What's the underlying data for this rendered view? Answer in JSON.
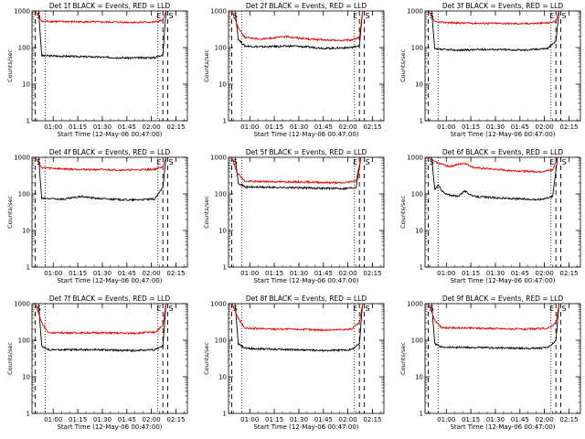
{
  "figure": {
    "ylabel": "Counts/sec",
    "xlabel": "Start Time (12-May-06 00:47:00)",
    "y_ticks": [
      "1",
      "10",
      "100",
      "1000"
    ],
    "x_ticks": [
      "01:00",
      "01:15",
      "01:30",
      "01:45",
      "02:00",
      "02:15"
    ],
    "colors": {
      "events": "#000000",
      "lld": "#ee0000"
    }
  },
  "chart_data": [
    {
      "type": "line",
      "title": "Det 1f BLACK = Events, RED = LLD",
      "xlabel": "Start Time (12-May-06 00:47:00)",
      "ylabel": "Counts/sec",
      "x_range_minutes_after_0047": [
        0,
        95
      ],
      "ylim": [
        1,
        1000
      ],
      "yscale": "log",
      "x_ticks": [
        "01:00",
        "01:15",
        "01:30",
        "01:45",
        "02:00",
        "02:15"
      ],
      "markers": [
        "S",
        "E",
        "S"
      ],
      "series": [
        {
          "name": "Events",
          "color": "#000000",
          "values": [
            [
              4,
              1000
            ],
            [
              6,
              60
            ],
            [
              20,
              58
            ],
            [
              40,
              55
            ],
            [
              60,
              52
            ],
            [
              75,
              53
            ],
            [
              80,
              65
            ],
            [
              82,
              1000
            ]
          ]
        },
        {
          "name": "LLD",
          "color": "#ee0000",
          "values": [
            [
              2,
              1000
            ],
            [
              6,
              520
            ],
            [
              20,
              510
            ],
            [
              40,
              500
            ],
            [
              60,
              490
            ],
            [
              75,
              495
            ],
            [
              80,
              560
            ],
            [
              82,
              1000
            ]
          ]
        }
      ]
    },
    {
      "type": "line",
      "title": "Det 2f BLACK = Events, RED = LLD",
      "xlabel": "Start Time (12-May-06 00:47:00)",
      "ylabel": "Counts/sec",
      "x_range_minutes_after_0047": [
        0,
        95
      ],
      "ylim": [
        1,
        1000
      ],
      "yscale": "log",
      "x_ticks": [
        "01:00",
        "01:15",
        "01:30",
        "01:45",
        "02:00",
        "02:15"
      ],
      "markers": [
        "S",
        "E",
        "S"
      ],
      "series": [
        {
          "name": "Events",
          "color": "#000000",
          "values": [
            [
              4,
              1000
            ],
            [
              6,
              170
            ],
            [
              10,
              110
            ],
            [
              20,
              105
            ],
            [
              40,
              110
            ],
            [
              60,
              95
            ],
            [
              75,
              100
            ],
            [
              80,
              115
            ],
            [
              82,
              1000
            ]
          ]
        },
        {
          "name": "LLD",
          "color": "#ee0000",
          "values": [
            [
              2,
              1000
            ],
            [
              6,
              350
            ],
            [
              10,
              190
            ],
            [
              20,
              170
            ],
            [
              35,
              200
            ],
            [
              50,
              170
            ],
            [
              65,
              155
            ],
            [
              75,
              160
            ],
            [
              80,
              190
            ],
            [
              82,
              1000
            ]
          ]
        }
      ]
    },
    {
      "type": "line",
      "title": "Det 3f BLACK = Events, RED = LLD",
      "xlabel": "Start Time (12-May-06 00:47:00)",
      "ylabel": "Counts/sec",
      "x_range_minutes_after_0047": [
        0,
        95
      ],
      "ylim": [
        1,
        1000
      ],
      "yscale": "log",
      "x_ticks": [
        "01:00",
        "01:15",
        "01:30",
        "01:45",
        "02:00",
        "02:15"
      ],
      "markers": [
        "S",
        "E",
        "S"
      ],
      "series": [
        {
          "name": "Events",
          "color": "#000000",
          "values": [
            [
              4,
              1000
            ],
            [
              6,
              90
            ],
            [
              20,
              85
            ],
            [
              40,
              90
            ],
            [
              60,
              85
            ],
            [
              75,
              95
            ],
            [
              80,
              150
            ],
            [
              82,
              1000
            ]
          ]
        },
        {
          "name": "LLD",
          "color": "#ee0000",
          "values": [
            [
              2,
              1000
            ],
            [
              6,
              500
            ],
            [
              20,
              470
            ],
            [
              40,
              460
            ],
            [
              60,
              450
            ],
            [
              75,
              470
            ],
            [
              80,
              520
            ],
            [
              82,
              1000
            ]
          ]
        }
      ]
    },
    {
      "type": "line",
      "title": "Det 4f BLACK = Events, RED = LLD",
      "xlabel": "Start Time (12-May-06 00:47:00)",
      "ylabel": "Counts/sec",
      "x_range_minutes_after_0047": [
        0,
        95
      ],
      "ylim": [
        1,
        1000
      ],
      "yscale": "log",
      "x_ticks": [
        "01:00",
        "01:15",
        "01:30",
        "01:45",
        "02:00",
        "02:15"
      ],
      "markers": [
        "S",
        "E",
        "S"
      ],
      "series": [
        {
          "name": "Events",
          "color": "#000000",
          "values": [
            [
              4,
              1000
            ],
            [
              6,
              75
            ],
            [
              20,
              72
            ],
            [
              30,
              85
            ],
            [
              40,
              75
            ],
            [
              60,
              68
            ],
            [
              75,
              72
            ],
            [
              80,
              150
            ],
            [
              82,
              1000
            ]
          ]
        },
        {
          "name": "LLD",
          "color": "#ee0000",
          "values": [
            [
              2,
              1000
            ],
            [
              6,
              520
            ],
            [
              20,
              480
            ],
            [
              40,
              460
            ],
            [
              60,
              450
            ],
            [
              75,
              470
            ],
            [
              80,
              560
            ],
            [
              82,
              1000
            ]
          ]
        }
      ]
    },
    {
      "type": "line",
      "title": "Det 5f BLACK = Events, RED = LLD",
      "xlabel": "Start Time (12-May-06 00:47:00)",
      "ylabel": "Counts/sec",
      "x_range_minutes_after_0047": [
        0,
        95
      ],
      "ylim": [
        1,
        1000
      ],
      "yscale": "log",
      "x_ticks": [
        "01:00",
        "01:15",
        "01:30",
        "01:45",
        "02:00",
        "02:15"
      ],
      "markers": [
        "S",
        "E",
        "S"
      ],
      "series": [
        {
          "name": "Events",
          "color": "#000000",
          "values": [
            [
              4,
              1000
            ],
            [
              6,
              200
            ],
            [
              10,
              155
            ],
            [
              30,
              150
            ],
            [
              50,
              145
            ],
            [
              70,
              140
            ],
            [
              78,
              150
            ],
            [
              81,
              1000
            ]
          ]
        },
        {
          "name": "LLD",
          "color": "#ee0000",
          "values": [
            [
              2,
              1000
            ],
            [
              5,
              400
            ],
            [
              10,
              220
            ],
            [
              30,
              215
            ],
            [
              50,
              210
            ],
            [
              70,
              200
            ],
            [
              78,
              230
            ],
            [
              81,
              1000
            ]
          ]
        }
      ]
    },
    {
      "type": "line",
      "title": "Det 6f BLACK = Events, RED = LLD",
      "xlabel": "Start Time (12-May-06 00:47:00)",
      "ylabel": "Counts/sec",
      "x_range_minutes_after_0047": [
        0,
        95
      ],
      "ylim": [
        1,
        1000
      ],
      "yscale": "log",
      "x_ticks": [
        "01:00",
        "01:15",
        "01:30",
        "01:45",
        "02:00",
        "02:15"
      ],
      "markers": [
        "S",
        "E",
        "S"
      ],
      "series": [
        {
          "name": "Events",
          "color": "#000000",
          "values": [
            [
              4,
              1000
            ],
            [
              6,
              130
            ],
            [
              8,
              170
            ],
            [
              12,
              100
            ],
            [
              20,
              85
            ],
            [
              24,
              120
            ],
            [
              30,
              85
            ],
            [
              50,
              75
            ],
            [
              70,
              70
            ],
            [
              78,
              85
            ],
            [
              81,
              1000
            ]
          ]
        },
        {
          "name": "LLD",
          "color": "#ee0000",
          "values": [
            [
              2,
              1000
            ],
            [
              5,
              800
            ],
            [
              8,
              700
            ],
            [
              15,
              560
            ],
            [
              24,
              700
            ],
            [
              30,
              520
            ],
            [
              50,
              440
            ],
            [
              70,
              400
            ],
            [
              78,
              450
            ],
            [
              81,
              1000
            ]
          ]
        }
      ]
    },
    {
      "type": "line",
      "title": "Det 7f BLACK = Events, RED = LLD",
      "xlabel": "Start Time (12-May-06 00:47:00)",
      "ylabel": "Counts/sec",
      "x_range_minutes_after_0047": [
        0,
        95
      ],
      "ylim": [
        1,
        1000
      ],
      "yscale": "log",
      "x_ticks": [
        "01:00",
        "01:15",
        "01:30",
        "01:45",
        "02:00",
        "02:15"
      ],
      "markers": [
        "S",
        "E",
        "S"
      ],
      "series": [
        {
          "name": "Events",
          "color": "#000000",
          "values": [
            [
              4,
              1000
            ],
            [
              6,
              70
            ],
            [
              10,
              55
            ],
            [
              40,
              55
            ],
            [
              60,
              52
            ],
            [
              75,
              55
            ],
            [
              80,
              70
            ],
            [
              82,
              1000
            ]
          ]
        },
        {
          "name": "LLD",
          "color": "#ee0000",
          "values": [
            [
              2,
              1000
            ],
            [
              6,
              300
            ],
            [
              10,
              160
            ],
            [
              40,
              160
            ],
            [
              60,
              155
            ],
            [
              75,
              165
            ],
            [
              80,
              250
            ],
            [
              82,
              1000
            ]
          ]
        }
      ]
    },
    {
      "type": "line",
      "title": "Det 8f BLACK = Events, RED = LLD",
      "xlabel": "Start Time (12-May-06 00:47:00)",
      "ylabel": "Counts/sec",
      "x_range_minutes_after_0047": [
        0,
        95
      ],
      "ylim": [
        1,
        1000
      ],
      "yscale": "log",
      "x_ticks": [
        "01:00",
        "01:15",
        "01:30",
        "01:45",
        "02:00",
        "02:15"
      ],
      "markers": [
        "S",
        "E",
        "S"
      ],
      "series": [
        {
          "name": "Events",
          "color": "#000000",
          "values": [
            [
              4,
              1000
            ],
            [
              6,
              80
            ],
            [
              10,
              60
            ],
            [
              40,
              55
            ],
            [
              60,
              52
            ],
            [
              75,
              55
            ],
            [
              80,
              80
            ],
            [
              82,
              1000
            ]
          ]
        },
        {
          "name": "LLD",
          "color": "#ee0000",
          "values": [
            [
              2,
              1000
            ],
            [
              6,
              400
            ],
            [
              10,
              210
            ],
            [
              40,
              200
            ],
            [
              60,
              190
            ],
            [
              75,
              200
            ],
            [
              80,
              300
            ],
            [
              82,
              1000
            ]
          ]
        }
      ]
    },
    {
      "type": "line",
      "title": "Det 9f BLACK = Events, RED = LLD",
      "xlabel": "Start Time (12-May-06 00:47:00)",
      "ylabel": "Counts/sec",
      "x_range_minutes_after_0047": [
        0,
        95
      ],
      "ylim": [
        1,
        1000
      ],
      "yscale": "log",
      "x_ticks": [
        "01:00",
        "01:15",
        "01:30",
        "01:45",
        "02:00",
        "02:15"
      ],
      "markers": [
        "S",
        "E",
        "S"
      ],
      "series": [
        {
          "name": "Events",
          "color": "#000000",
          "values": [
            [
              4,
              1000
            ],
            [
              6,
              80
            ],
            [
              10,
              65
            ],
            [
              40,
              62
            ],
            [
              60,
              60
            ],
            [
              75,
              62
            ],
            [
              80,
              100
            ],
            [
              82,
              1000
            ]
          ]
        },
        {
          "name": "LLD",
          "color": "#ee0000",
          "values": [
            [
              2,
              1000
            ],
            [
              6,
              350
            ],
            [
              10,
              220
            ],
            [
              40,
              210
            ],
            [
              60,
              200
            ],
            [
              75,
              210
            ],
            [
              80,
              300
            ],
            [
              82,
              1000
            ]
          ]
        }
      ]
    }
  ]
}
